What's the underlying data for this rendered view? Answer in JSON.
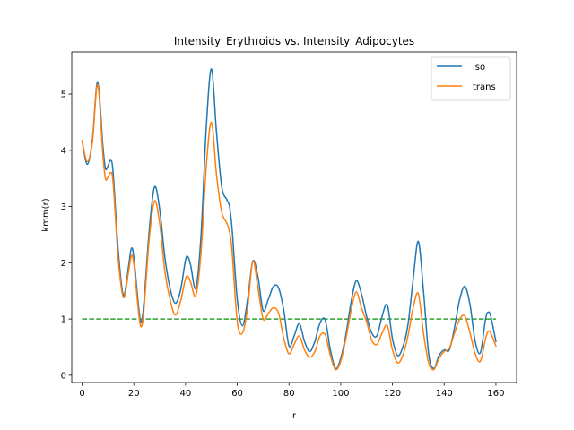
{
  "chart_data": {
    "type": "line",
    "title": "Intensity_Erythroids vs. Intensity_Adipocytes",
    "xlabel": "r",
    "ylabel": "kmm(r)",
    "xlim": [
      -4,
      168
    ],
    "ylim": [
      -0.13,
      5.75
    ],
    "xticks": [
      0,
      20,
      40,
      60,
      80,
      100,
      120,
      140,
      160
    ],
    "yticks": [
      0,
      1,
      2,
      3,
      4,
      5
    ],
    "grid": false,
    "legend_position": "top-right",
    "series": [
      {
        "name": "iso",
        "color": "#1f77b4",
        "x": [
          0,
          2,
          4,
          6,
          8,
          9,
          10,
          11,
          12,
          14,
          16,
          18,
          19,
          20,
          22,
          23,
          24,
          26,
          28,
          30,
          32,
          34,
          36,
          38,
          40,
          41,
          42,
          44,
          46,
          48,
          50,
          52,
          54,
          56,
          57,
          58,
          60,
          62,
          64,
          66,
          68,
          70,
          72,
          74,
          76,
          78,
          80,
          82,
          84,
          86,
          88,
          90,
          92,
          94,
          96,
          98,
          100,
          102,
          104,
          106,
          108,
          110,
          112,
          114,
          116,
          118,
          120,
          122,
          124,
          126,
          128,
          130,
          132,
          134,
          136,
          138,
          140,
          142,
          144,
          146,
          148,
          150,
          152,
          154,
          156,
          157,
          158,
          160
        ],
        "y": [
          4.17,
          3.75,
          4.2,
          5.22,
          4.1,
          3.68,
          3.72,
          3.82,
          3.6,
          2.2,
          1.42,
          1.95,
          2.25,
          2.1,
          1.15,
          0.95,
          1.35,
          2.6,
          3.35,
          2.95,
          2.1,
          1.55,
          1.28,
          1.5,
          2.05,
          2.1,
          1.95,
          1.55,
          2.5,
          4.4,
          5.45,
          4.3,
          3.35,
          3.12,
          3.0,
          2.6,
          1.35,
          0.88,
          1.35,
          2.03,
          1.75,
          1.15,
          1.35,
          1.58,
          1.55,
          1.15,
          0.52,
          0.7,
          0.92,
          0.6,
          0.42,
          0.6,
          0.93,
          0.98,
          0.45,
          0.12,
          0.3,
          0.72,
          1.3,
          1.68,
          1.45,
          1.05,
          0.75,
          0.7,
          1.05,
          1.25,
          0.65,
          0.35,
          0.5,
          0.9,
          1.7,
          2.38,
          1.5,
          0.38,
          0.12,
          0.35,
          0.45,
          0.45,
          0.85,
          1.35,
          1.58,
          1.25,
          0.6,
          0.4,
          1.0,
          1.12,
          1.05,
          0.6
        ]
      },
      {
        "name": "trans",
        "color": "#ff7f0e",
        "x": [
          0,
          2,
          4,
          6,
          8,
          9,
          10,
          11,
          12,
          14,
          16,
          18,
          19,
          20,
          22,
          23,
          24,
          26,
          28,
          30,
          32,
          34,
          36,
          38,
          40,
          41,
          42,
          44,
          46,
          48,
          50,
          52,
          54,
          56,
          57,
          58,
          60,
          62,
          64,
          66,
          68,
          70,
          72,
          74,
          76,
          78,
          80,
          82,
          84,
          86,
          88,
          90,
          92,
          94,
          96,
          98,
          100,
          102,
          104,
          106,
          108,
          110,
          112,
          114,
          116,
          118,
          120,
          122,
          124,
          126,
          128,
          130,
          132,
          134,
          136,
          138,
          140,
          142,
          144,
          146,
          148,
          150,
          152,
          154,
          156,
          157,
          158,
          160
        ],
        "y": [
          4.17,
          3.8,
          4.15,
          5.17,
          3.95,
          3.5,
          3.52,
          3.6,
          3.42,
          2.05,
          1.38,
          1.85,
          2.12,
          1.98,
          1.05,
          0.87,
          1.22,
          2.45,
          3.1,
          2.7,
          1.85,
          1.35,
          1.07,
          1.3,
          1.72,
          1.75,
          1.65,
          1.42,
          2.2,
          3.7,
          4.5,
          3.55,
          2.9,
          2.7,
          2.55,
          2.2,
          0.95,
          0.75,
          1.2,
          2.03,
          1.55,
          1.0,
          1.1,
          1.2,
          1.1,
          0.65,
          0.38,
          0.55,
          0.7,
          0.45,
          0.32,
          0.42,
          0.7,
          0.72,
          0.35,
          0.1,
          0.25,
          0.65,
          1.15,
          1.48,
          1.2,
          0.95,
          0.62,
          0.55,
          0.75,
          0.88,
          0.45,
          0.22,
          0.35,
          0.7,
          1.2,
          1.45,
          0.75,
          0.22,
          0.1,
          0.3,
          0.42,
          0.48,
          0.75,
          1.0,
          1.05,
          0.75,
          0.38,
          0.25,
          0.65,
          0.78,
          0.75,
          0.52
        ]
      }
    ],
    "reference_line": {
      "y": 1.0,
      "x_range": [
        0,
        160
      ],
      "color": "#2ca02c",
      "style": "dashed"
    }
  }
}
